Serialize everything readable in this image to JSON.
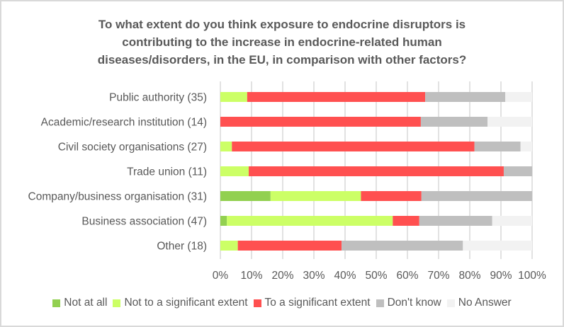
{
  "chart_data": {
    "type": "bar",
    "orientation": "horizontal",
    "stacked": "percent",
    "title": "To what extent do you think exposure to endocrine disruptors is\ncontributing to the increase in endocrine-related human\ndiseases/disorders, in the EU, in comparison with other factors?",
    "xlabel": "",
    "ylabel": "",
    "xlim": [
      0,
      100
    ],
    "x_ticks": [
      "0%",
      "10%",
      "20%",
      "30%",
      "40%",
      "50%",
      "60%",
      "70%",
      "80%",
      "90%",
      "100%"
    ],
    "grid": true,
    "legend_position": "bottom",
    "categories": [
      "Public authority (35)",
      "Academic/research institution (14)",
      "Civil society organisations (27)",
      "Trade union (11)",
      "Company/business organisation (31)",
      "Business association (47)",
      "Other (18)"
    ],
    "series": [
      {
        "name": "Not at all",
        "color": "#92D050",
        "values": [
          0.0,
          0.0,
          0.0,
          0.0,
          16.1,
          2.1,
          0.0
        ]
      },
      {
        "name": "Not to a significant extent",
        "color": "#CCFF66",
        "values": [
          8.6,
          0.0,
          3.7,
          9.1,
          29.0,
          53.2,
          5.6
        ]
      },
      {
        "name": "To a significant extent",
        "color": "#FF5050",
        "values": [
          57.1,
          64.3,
          77.8,
          81.8,
          19.4,
          8.5,
          33.3
        ]
      },
      {
        "name": "Don't know",
        "color": "#BFBFBF",
        "values": [
          25.7,
          21.4,
          14.8,
          9.1,
          35.5,
          23.4,
          38.9
        ]
      },
      {
        "name": "No Answer",
        "color": "#F2F2F2",
        "values": [
          8.6,
          14.3,
          3.7,
          0.0,
          0.0,
          12.8,
          22.2
        ]
      }
    ]
  }
}
